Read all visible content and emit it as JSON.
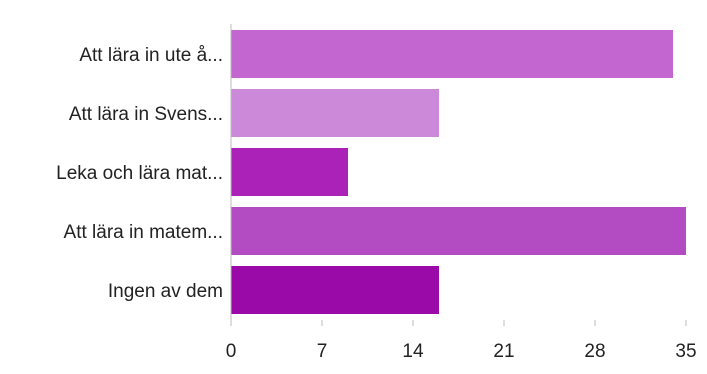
{
  "chart_data": {
    "type": "bar",
    "orientation": "horizontal",
    "categories": [
      "Att lära in ute å...",
      "Att lära in Svens...",
      "Leka och lära mat...",
      "Att lära in matem...",
      "Ingen av dem"
    ],
    "values": [
      34,
      16,
      9,
      35,
      16
    ],
    "colors": [
      "#c366cf",
      "#cc88d9",
      "#aa22b8",
      "#b34cc2",
      "#990aa8"
    ],
    "xlim": [
      0,
      35
    ],
    "xticks": [
      0,
      7,
      14,
      21,
      28,
      35
    ],
    "title": "",
    "xlabel": "",
    "ylabel": "",
    "grid": false,
    "legend": "none"
  }
}
